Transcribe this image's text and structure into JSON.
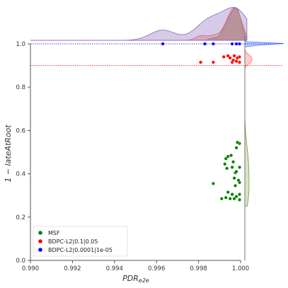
{
  "chart_data": {
    "type": "scatter",
    "title": "",
    "xlabel": "PDR",
    "xlabel_sub": "e2e",
    "ylabel": "1 − lateAtRoot",
    "xlim": [
      0.99,
      1.0
    ],
    "ylim": [
      0.0,
      1.0
    ],
    "xticks": [
      "0.990",
      "0.992",
      "0.994",
      "0.996",
      "0.998",
      "1.000"
    ],
    "yticks": [
      "0.0",
      "0.2",
      "0.4",
      "0.6",
      "0.8",
      "1.0"
    ],
    "reference_lines": [
      {
        "y": 1.0,
        "color": "#0000ff",
        "style": "dotted"
      },
      {
        "y": 0.9,
        "color": "#ff0000",
        "style": "dotted"
      }
    ],
    "legend_position": "lower-left",
    "grid": false,
    "marginal_plots": "kde",
    "series": [
      {
        "name": "MSF",
        "color": "#008000",
        "points": [
          [
            0.9987,
            0.355
          ],
          [
            0.9991,
            0.285
          ],
          [
            0.9993,
            0.29
          ],
          [
            0.9994,
            0.315
          ],
          [
            0.9995,
            0.285
          ],
          [
            0.9996,
            0.305
          ],
          [
            0.9997,
            0.285
          ],
          [
            0.9998,
            0.295
          ],
          [
            0.99995,
            0.28
          ],
          [
            0.99995,
            0.305
          ],
          [
            0.99995,
            0.36
          ],
          [
            0.99995,
            0.43
          ],
          [
            0.99995,
            0.54
          ],
          [
            0.99935,
            0.425
          ],
          [
            0.99925,
            0.445
          ],
          [
            0.9993,
            0.47
          ],
          [
            0.9994,
            0.48
          ],
          [
            0.99955,
            0.485
          ],
          [
            0.9996,
            0.43
          ],
          [
            0.99965,
            0.455
          ],
          [
            0.9997,
            0.38
          ],
          [
            0.99975,
            0.405
          ],
          [
            0.9998,
            0.52
          ],
          [
            0.99985,
            0.545
          ],
          [
            0.99975,
            0.345
          ],
          [
            0.9999,
            0.37
          ],
          [
            0.9998,
            0.41
          ]
        ]
      },
      {
        "name": "BDPC-L2|0.1|0.05",
        "color": "#ff0000",
        "points": [
          [
            0.9981,
            0.915
          ],
          [
            0.9987,
            0.915
          ],
          [
            0.9992,
            0.94
          ],
          [
            0.9994,
            0.945
          ],
          [
            0.9995,
            0.935
          ],
          [
            0.9996,
            0.915
          ],
          [
            0.99965,
            0.925
          ],
          [
            0.9997,
            0.945
          ],
          [
            0.9998,
            0.92
          ],
          [
            0.99985,
            0.935
          ],
          [
            0.99995,
            0.915
          ],
          [
            0.99995,
            0.94
          ]
        ]
      },
      {
        "name": "BDPC-L2|0.0001|1e-05",
        "color": "#0000ff",
        "points": [
          [
            0.9963,
            1.0
          ],
          [
            0.9983,
            1.0
          ],
          [
            0.9987,
            1.0
          ],
          [
            0.9996,
            1.0
          ],
          [
            0.9998,
            1.0
          ],
          [
            0.99995,
            1.0
          ]
        ]
      }
    ]
  }
}
